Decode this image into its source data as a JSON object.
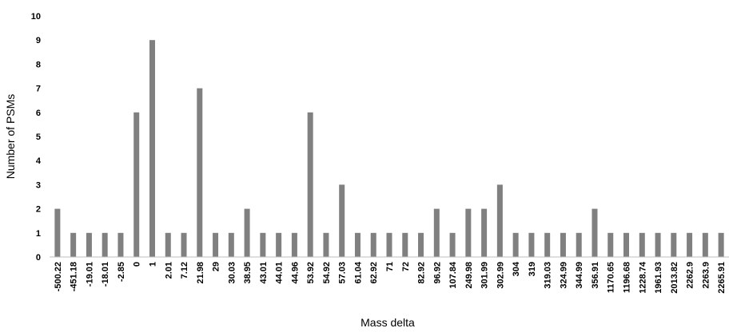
{
  "chart_data": {
    "type": "bar",
    "title": "",
    "xlabel": "Mass delta",
    "ylabel": "Number of PSMs",
    "ylim": [
      0,
      10
    ],
    "yticks": [
      0,
      1,
      2,
      3,
      4,
      5,
      6,
      7,
      8,
      9,
      10
    ],
    "grid": false,
    "legend": "none",
    "bar_color": "#808080",
    "categories": [
      "-500.22",
      "-451.18",
      "-19.01",
      "-18.01",
      "-2.85",
      "0",
      "1",
      "2.01",
      "7.12",
      "21.98",
      "29",
      "30.03",
      "38.95",
      "43.01",
      "44.01",
      "44.96",
      "53.92",
      "54.92",
      "57.03",
      "61.04",
      "62.92",
      "71",
      "72",
      "82.92",
      "96.92",
      "107.84",
      "249.98",
      "301.99",
      "302.99",
      "304",
      "319",
      "319.03",
      "324.99",
      "344.99",
      "356.91",
      "1170.65",
      "1196.68",
      "1228.74",
      "1961.93",
      "2013.82",
      "2262.9",
      "2263.9",
      "2265.91"
    ],
    "values": [
      2,
      1,
      1,
      1,
      1,
      6,
      9,
      1,
      1,
      7,
      1,
      1,
      2,
      1,
      1,
      1,
      6,
      1,
      3,
      1,
      1,
      1,
      1,
      1,
      2,
      1,
      2,
      2,
      3,
      1,
      1,
      1,
      1,
      1,
      2,
      1,
      1,
      1,
      1,
      1,
      1,
      1,
      1
    ]
  }
}
